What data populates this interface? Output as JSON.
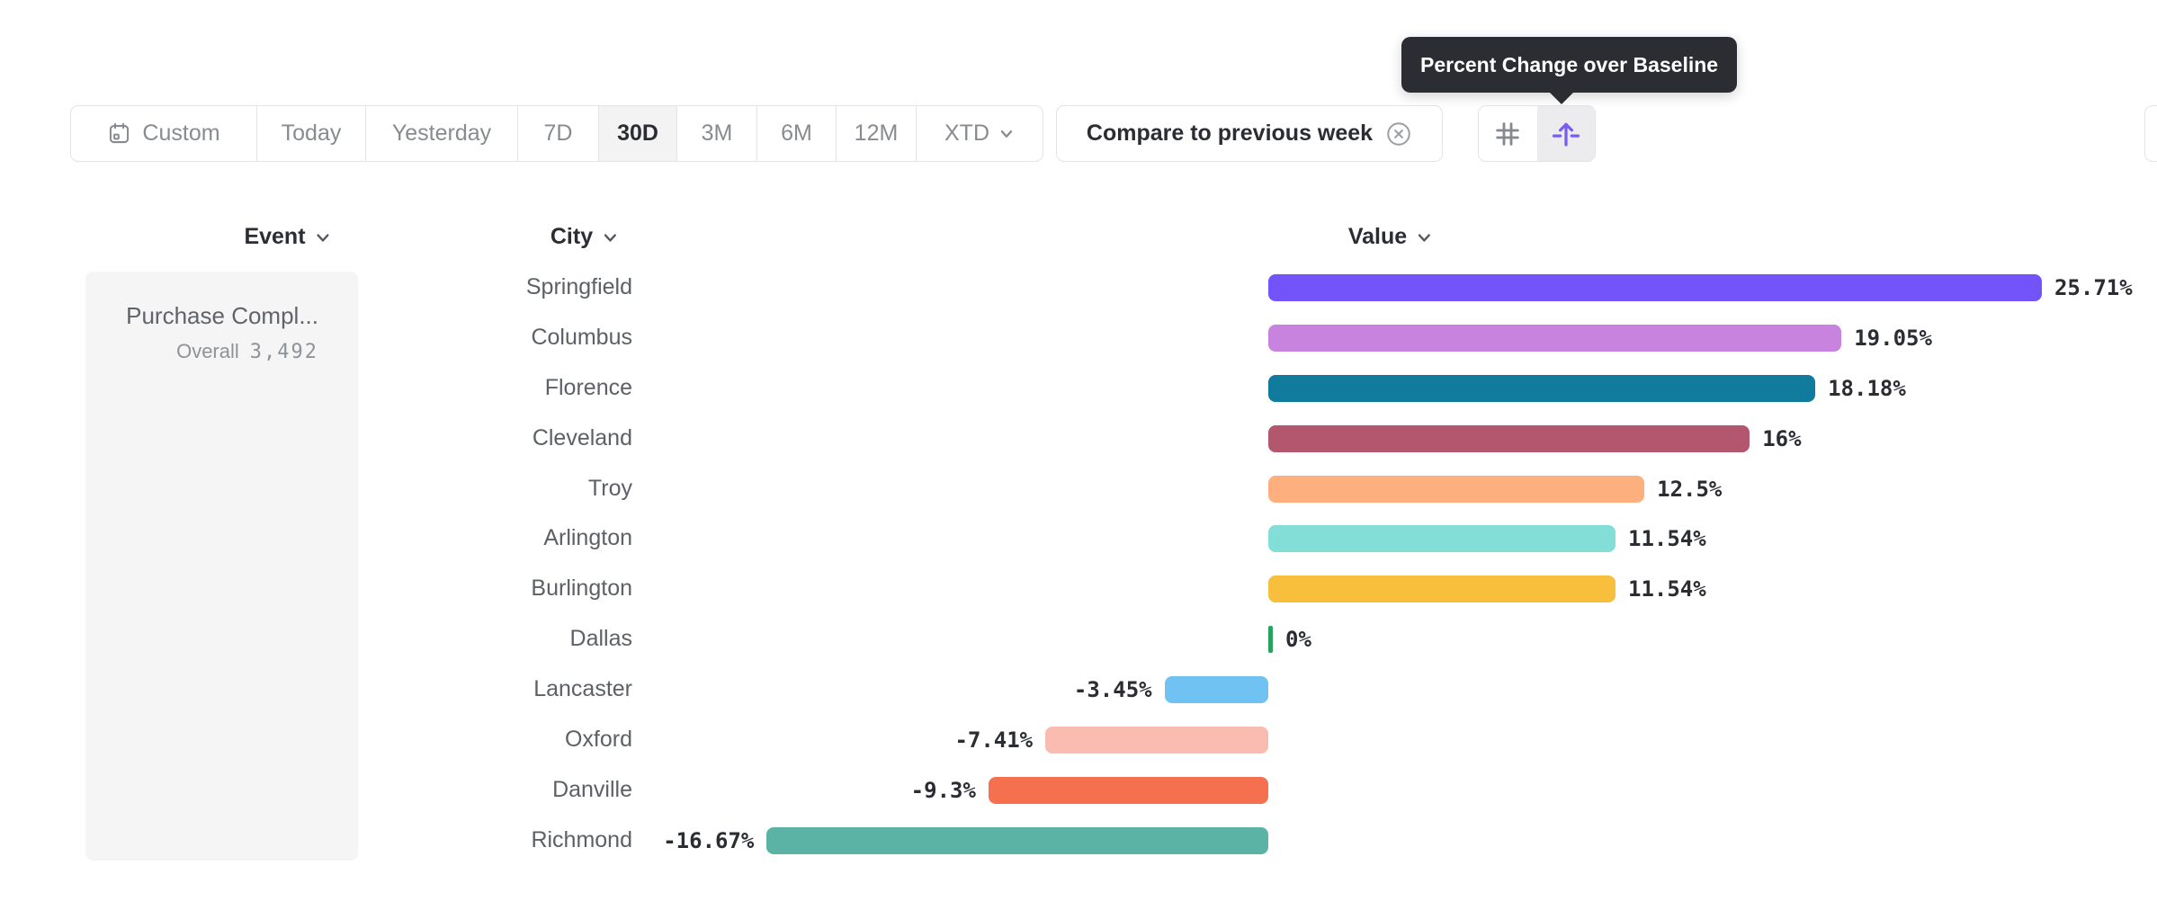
{
  "tooltip": {
    "text": "Percent Change over Baseline"
  },
  "toolbar": {
    "date_ranges": [
      {
        "label": "Custom",
        "icon": "calendar-icon",
        "selected": false
      },
      {
        "label": "Today",
        "selected": false
      },
      {
        "label": "Yesterday",
        "selected": false
      },
      {
        "label": "7D",
        "selected": false
      },
      {
        "label": "30D",
        "selected": true
      },
      {
        "label": "3M",
        "selected": false
      },
      {
        "label": "6M",
        "selected": false
      },
      {
        "label": "12M",
        "selected": false
      },
      {
        "label": "XTD",
        "has_chevron": true,
        "selected": false
      }
    ],
    "compare_button": {
      "label": "Compare to previous week",
      "close_icon": "circle-x-icon"
    },
    "view_toggle": [
      {
        "icon": "grid-icon",
        "selected": false
      },
      {
        "icon": "lift-arrow-icon",
        "selected": true,
        "accent_color": "#7a5cf5"
      }
    ]
  },
  "columns": {
    "event": "Event",
    "city": "City",
    "value": "Value"
  },
  "event_card": {
    "name": "Purchase Compl...",
    "overall_label": "Overall",
    "overall_value": "3,492"
  },
  "chart_data": {
    "type": "bar",
    "orientation": "horizontal",
    "title": "Percent Change over Baseline",
    "unit": "%",
    "xlim": [
      -16.67,
      25.71
    ],
    "categories": [
      "Springfield",
      "Columbus",
      "Florence",
      "Cleveland",
      "Troy",
      "Arlington",
      "Burlington",
      "Dallas",
      "Lancaster",
      "Oxford",
      "Danville",
      "Richmond"
    ],
    "values": [
      25.71,
      19.05,
      18.18,
      16,
      12.5,
      11.54,
      11.54,
      0,
      -3.45,
      -7.41,
      -9.3,
      -16.67
    ],
    "value_labels": [
      "25.71%",
      "19.05%",
      "18.18%",
      "16%",
      "12.5%",
      "11.54%",
      "11.54%",
      "0%",
      "-3.45%",
      "-7.41%",
      "-9.3%",
      "-16.67%"
    ],
    "bar_colors": [
      "#7353fa",
      "#c783dd",
      "#117b9d",
      "#b2576e",
      "#fdb07d",
      "#82ded6",
      "#f7bf3b",
      "#27a35f",
      "#6fc2f2",
      "#fabcb1",
      "#f5704f",
      "#5ab3a5"
    ]
  },
  "ui_colors": {
    "text_dark": "#2b2d33",
    "text_gray": "#888b90",
    "label_gray": "#5d6065",
    "border": "#e3e4e6",
    "panel_bg": "#f5f5f6",
    "selected_bg": "#f3f3f4",
    "tooltip_bg": "#2b2d33",
    "accent_purple": "#7a5cf5"
  }
}
